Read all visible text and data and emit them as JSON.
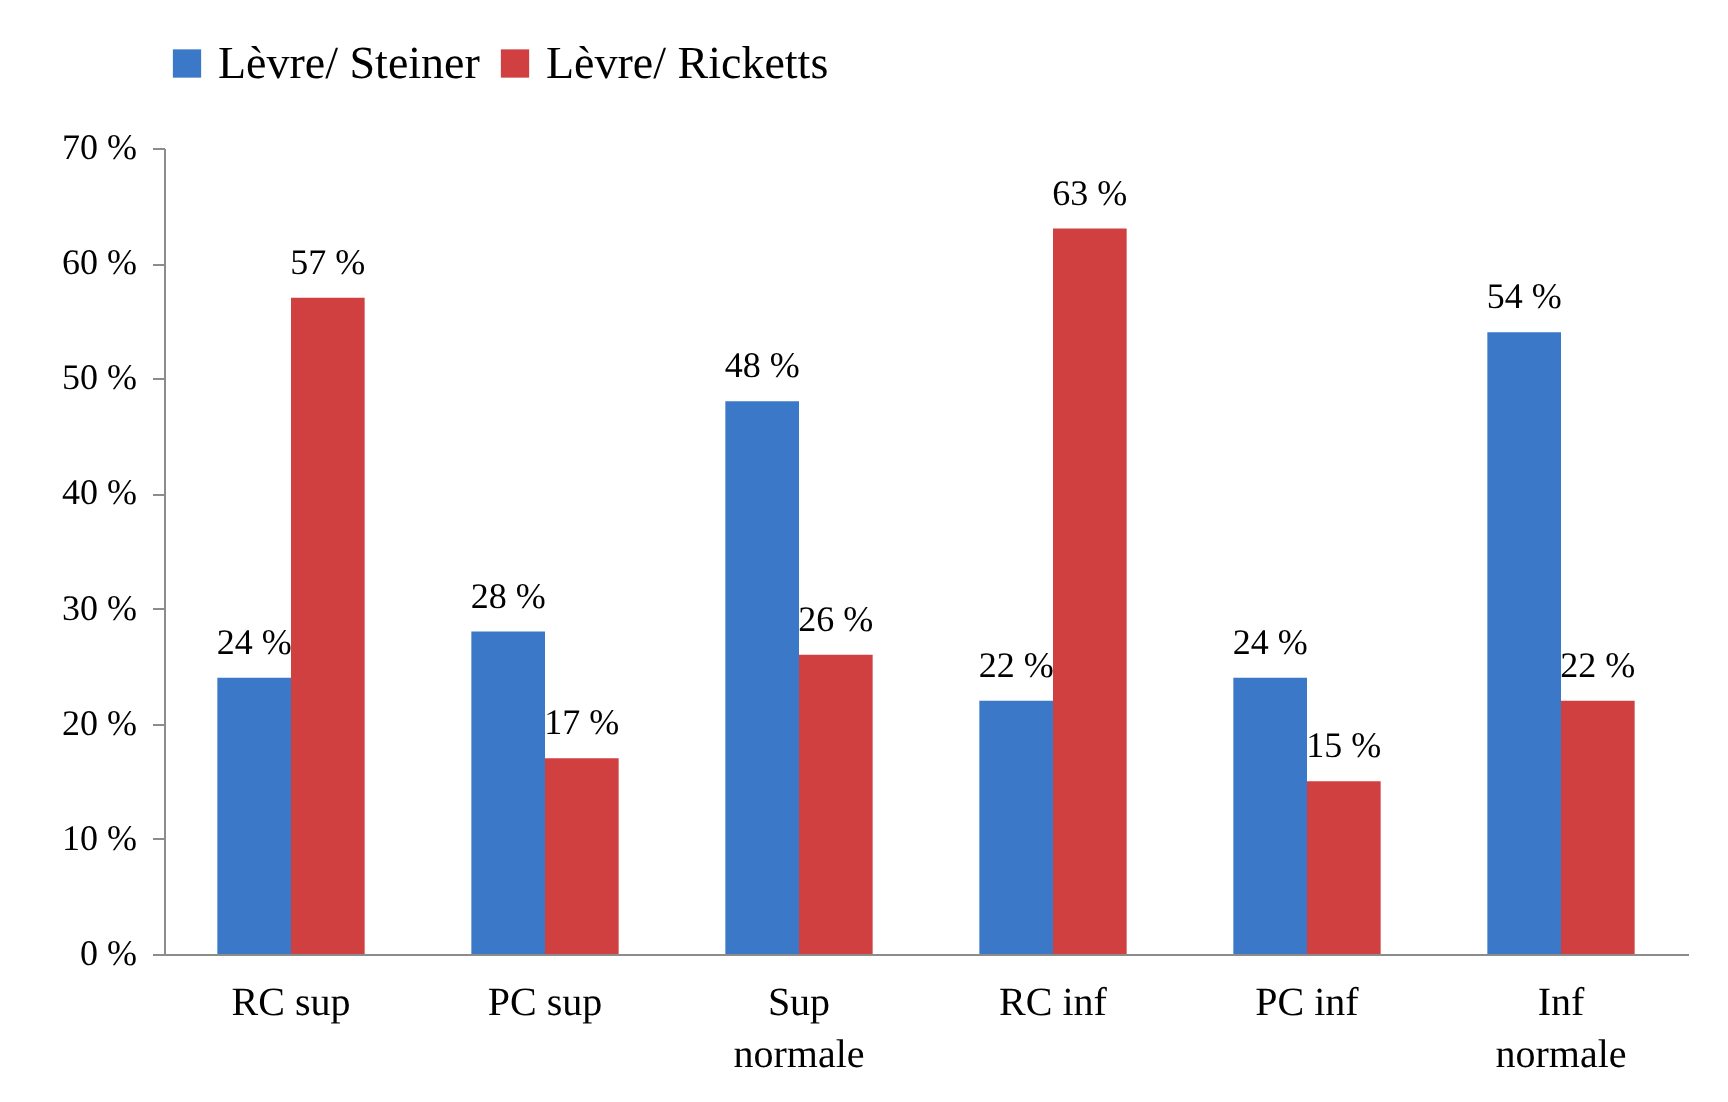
{
  "chart_data": {
    "type": "bar",
    "categories": [
      "RC sup",
      "PC sup",
      "Sup normale",
      "RC inf",
      "PC inf",
      "Inf normale"
    ],
    "series": [
      {
        "name": "Lèvre/ Steiner",
        "color": "#3b78c8",
        "values": [
          24,
          28,
          48,
          22,
          24,
          54
        ],
        "value_labels": [
          "24 %",
          "28 %",
          "48 %",
          "22 %",
          "24 %",
          "54 %"
        ]
      },
      {
        "name": "Lèvre/ Ricketts",
        "color": "#d04040",
        "values": [
          57,
          17,
          26,
          63,
          15,
          22
        ],
        "value_labels": [
          "57 %",
          "17 %",
          "26 %",
          "63 %",
          "15 %",
          "22 %"
        ]
      }
    ],
    "ylim": [
      0,
      70
    ],
    "yticks": [
      {
        "value": 0,
        "label": "0 %"
      },
      {
        "value": 10,
        "label": "10 %"
      },
      {
        "value": 20,
        "label": "20 %"
      },
      {
        "value": 30,
        "label": "30 %"
      },
      {
        "value": 40,
        "label": "40 %"
      },
      {
        "value": 50,
        "label": "50 %"
      },
      {
        "value": 60,
        "label": "60 %"
      },
      {
        "value": 70,
        "label": "70 %"
      }
    ],
    "legend": "top",
    "grid": false
  }
}
